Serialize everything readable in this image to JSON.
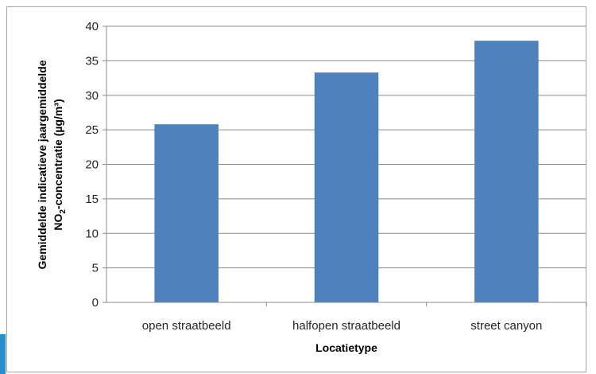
{
  "chart_data": {
    "type": "bar",
    "categories": [
      "open straatbeeld",
      "halfopen straatbeeld",
      "street canyon"
    ],
    "values": [
      25.8,
      33.3,
      37.9
    ],
    "title": "",
    "xlabel": "Locatietype",
    "ylabel": {
      "line1": "Gemiddelde indicatieve  jaargemiddelde",
      "line2_prefix": "NO",
      "line2_sub": "2",
      "line2_suffix": "-concentratie (µg/m³)"
    },
    "ylim": [
      0,
      40
    ],
    "yticks": [
      "0",
      "5",
      "10",
      "15",
      "20",
      "25",
      "30",
      "35",
      "40"
    ],
    "bar_color": "#4f81bd",
    "grid": true,
    "legend": "none"
  }
}
